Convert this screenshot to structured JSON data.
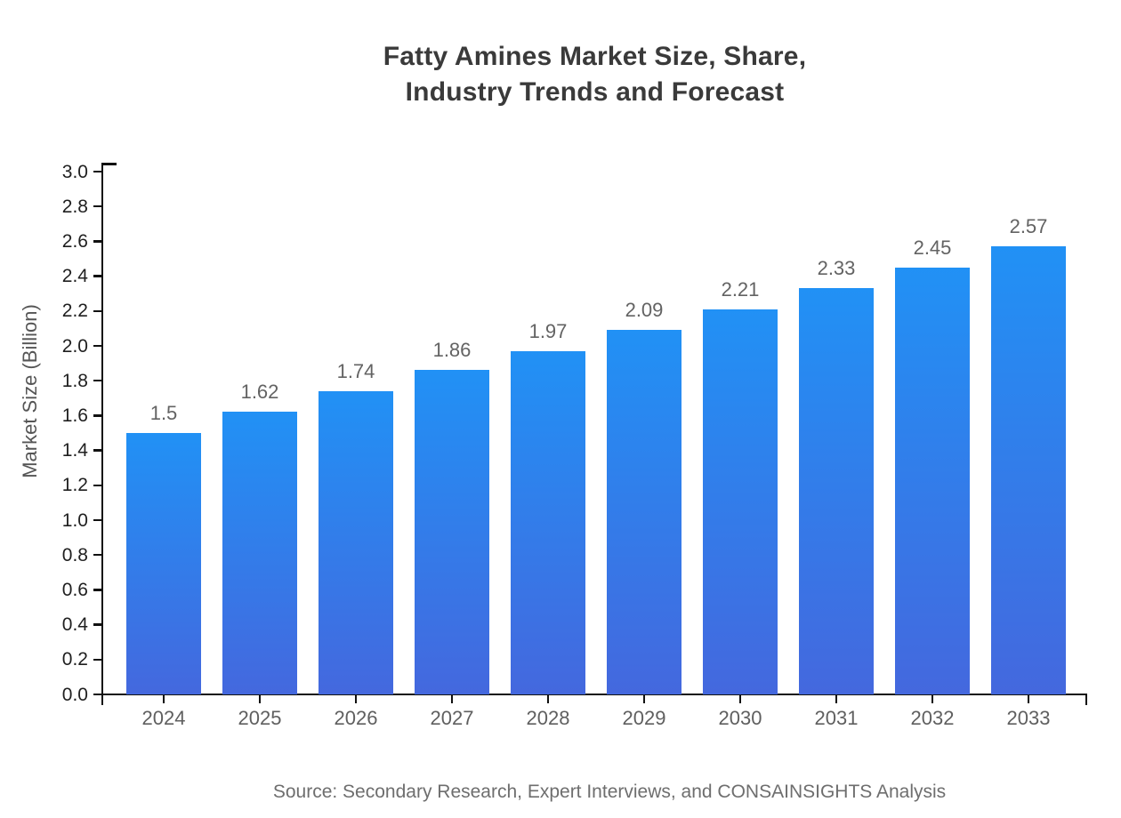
{
  "page": {
    "background": "#ffffff"
  },
  "chart_data": {
    "type": "bar",
    "title": "Fatty Amines Market Size, Share,\nIndustry Trends and Forecast",
    "categories": [
      "2024",
      "2025",
      "2026",
      "2027",
      "2028",
      "2029",
      "2030",
      "2031",
      "2032",
      "2033"
    ],
    "values": [
      1.5,
      1.62,
      1.74,
      1.86,
      1.97,
      2.09,
      2.21,
      2.33,
      2.45,
      2.57
    ],
    "value_labels": [
      "1.5",
      "1.62",
      "1.74",
      "1.86",
      "1.97",
      "2.09",
      "2.21",
      "2.33",
      "2.45",
      "2.57"
    ],
    "xlabel": "",
    "ylabel": "Market Size (Billion)",
    "ylim": [
      0.0,
      3.0
    ],
    "ytick_step": 0.2,
    "ytick_labels": [
      "0.0",
      "0.2",
      "0.4",
      "0.6",
      "0.8",
      "1.0",
      "1.2",
      "1.4",
      "1.6",
      "1.8",
      "2.0",
      "2.2",
      "2.4",
      "2.6",
      "2.8",
      "3.0"
    ],
    "grid": false,
    "legend": false,
    "source": "Source: Secondary Research, Expert Interviews, and CONSAINSIGHTS Analysis"
  },
  "colors": {
    "bar_gradient_top": "#2191f5",
    "bar_gradient_bottom": "#4468de",
    "title": "#3a3a3a",
    "axis": "#111111",
    "ytick_label": "#1f1f1f",
    "xtick_label": "#5f5f5f",
    "value_label": "#636363",
    "ylabel": "#555555",
    "source": "#6e6e6e"
  }
}
